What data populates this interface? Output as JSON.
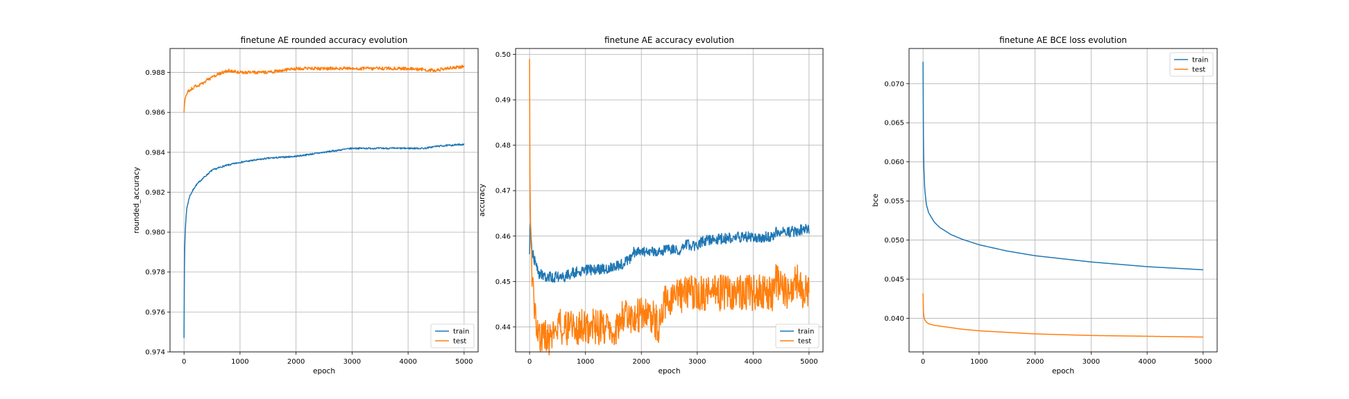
{
  "colors": {
    "train": "#1f77b4",
    "test": "#ff7f0e",
    "grid": "#b0b0b0"
  },
  "chart_data": [
    {
      "type": "line",
      "title": "finetune AE rounded accuracy evolution",
      "xlabel": "epoch",
      "ylabel": "rounded_accuracy",
      "xlim": [
        -250,
        5250
      ],
      "ylim": [
        0.974,
        0.9892
      ],
      "xticks": [
        0,
        1000,
        2000,
        3000,
        4000,
        5000
      ],
      "yticks": [
        0.974,
        0.976,
        0.978,
        0.98,
        0.982,
        0.984,
        0.986,
        0.988
      ],
      "tick_decimals": 3,
      "grid": true,
      "legend_position": "lower-right",
      "series": [
        {
          "name": "train",
          "color": "#1f77b4",
          "noise": 4e-05,
          "points": [
            [
              0,
              0.9747
            ],
            [
              3,
              0.977
            ],
            [
              10,
              0.979
            ],
            [
              25,
              0.9803
            ],
            [
              50,
              0.9812
            ],
            [
              100,
              0.9818
            ],
            [
              200,
              0.9823
            ],
            [
              300,
              0.9826
            ],
            [
              500,
              0.9831
            ],
            [
              700,
              0.9833
            ],
            [
              1000,
              0.9835
            ],
            [
              1500,
              0.9837
            ],
            [
              2000,
              0.9838
            ],
            [
              2500,
              0.984
            ],
            [
              3000,
              0.9842
            ],
            [
              3500,
              0.9842
            ],
            [
              4000,
              0.9842
            ],
            [
              4300,
              0.9842
            ],
            [
              4500,
              0.9843
            ],
            [
              5000,
              0.9844
            ]
          ]
        },
        {
          "name": "test",
          "color": "#ff7f0e",
          "noise": 8e-05,
          "points": [
            [
              0,
              0.986
            ],
            [
              10,
              0.9865
            ],
            [
              30,
              0.9868
            ],
            [
              60,
              0.987
            ],
            [
              100,
              0.9871
            ],
            [
              200,
              0.9873
            ],
            [
              300,
              0.9874
            ],
            [
              400,
              0.9876
            ],
            [
              600,
              0.9879
            ],
            [
              800,
              0.9881
            ],
            [
              1000,
              0.988
            ],
            [
              1500,
              0.988
            ],
            [
              2000,
              0.9882
            ],
            [
              2500,
              0.9882
            ],
            [
              3000,
              0.9882
            ],
            [
              3500,
              0.9882
            ],
            [
              4000,
              0.9882
            ],
            [
              4500,
              0.9881
            ],
            [
              4700,
              0.9882
            ],
            [
              5000,
              0.9883
            ]
          ]
        }
      ]
    },
    {
      "type": "line",
      "title": "finetune AE accuracy evolution",
      "xlabel": "epoch",
      "ylabel": "accuracy",
      "xlim": [
        -250,
        5250
      ],
      "ylim": [
        0.4345,
        0.5013
      ],
      "xticks": [
        0,
        1000,
        2000,
        3000,
        4000,
        5000
      ],
      "yticks": [
        0.44,
        0.45,
        0.46,
        0.47,
        0.48,
        0.49,
        0.5
      ],
      "tick_decimals": 2,
      "grid": true,
      "legend_position": "lower-right",
      "series": [
        {
          "name": "train",
          "color": "#1f77b4",
          "noise": 0.0012,
          "points": [
            [
              0,
              0.456
            ],
            [
              10,
              0.464
            ],
            [
              30,
              0.458
            ],
            [
              80,
              0.455
            ],
            [
              150,
              0.452
            ],
            [
              250,
              0.451
            ],
            [
              400,
              0.451
            ],
            [
              600,
              0.451
            ],
            [
              800,
              0.452
            ],
            [
              1000,
              0.4525
            ],
            [
              1500,
              0.453
            ],
            [
              1700,
              0.454
            ],
            [
              1800,
              0.455
            ],
            [
              1850,
              0.4565
            ],
            [
              2000,
              0.4565
            ],
            [
              2500,
              0.457
            ],
            [
              2700,
              0.457
            ],
            [
              2800,
              0.458
            ],
            [
              3000,
              0.458
            ],
            [
              3100,
              0.459
            ],
            [
              3500,
              0.4595
            ],
            [
              3700,
              0.4598
            ],
            [
              4000,
              0.4598
            ],
            [
              4350,
              0.4598
            ],
            [
              4400,
              0.461
            ],
            [
              4800,
              0.461
            ],
            [
              4850,
              0.4615
            ],
            [
              5000,
              0.4615
            ]
          ]
        },
        {
          "name": "test",
          "color": "#ff7f0e",
          "noise": 0.004,
          "points": [
            [
              0,
              0.499
            ],
            [
              5,
              0.475
            ],
            [
              15,
              0.465
            ],
            [
              30,
              0.455
            ],
            [
              60,
              0.447
            ],
            [
              100,
              0.442
            ],
            [
              150,
              0.44
            ],
            [
              200,
              0.4375
            ],
            [
              400,
              0.4375
            ],
            [
              500,
              0.44
            ],
            [
              700,
              0.44
            ],
            [
              1000,
              0.44
            ],
            [
              1600,
              0.44
            ],
            [
              1650,
              0.4425
            ],
            [
              2000,
              0.4425
            ],
            [
              2200,
              0.4425
            ],
            [
              2300,
              0.44
            ],
            [
              2400,
              0.445
            ],
            [
              2700,
              0.447
            ],
            [
              2800,
              0.4475
            ],
            [
              3000,
              0.4475
            ],
            [
              4000,
              0.4475
            ],
            [
              4350,
              0.4475
            ],
            [
              4400,
              0.45
            ],
            [
              4600,
              0.4475
            ],
            [
              4800,
              0.45
            ],
            [
              4900,
              0.4475
            ],
            [
              5000,
              0.4475
            ]
          ]
        }
      ]
    },
    {
      "type": "line",
      "title": "finetune AE BCE loss evolution",
      "xlabel": "epoch",
      "ylabel": "bce",
      "xlim": [
        -250,
        5250
      ],
      "ylim": [
        0.0357,
        0.0745
      ],
      "xticks": [
        0,
        1000,
        2000,
        3000,
        4000,
        5000
      ],
      "yticks": [
        0.04,
        0.045,
        0.05,
        0.055,
        0.06,
        0.065,
        0.07
      ],
      "tick_decimals": 3,
      "grid": true,
      "legend_position": "upper-right",
      "series": [
        {
          "name": "train",
          "color": "#1f77b4",
          "noise": 0,
          "points": [
            [
              0,
              0.0728
            ],
            [
              5,
              0.064
            ],
            [
              15,
              0.059
            ],
            [
              30,
              0.0565
            ],
            [
              60,
              0.0545
            ],
            [
              100,
              0.0535
            ],
            [
              200,
              0.0523
            ],
            [
              300,
              0.0516
            ],
            [
              500,
              0.0507
            ],
            [
              700,
              0.0501
            ],
            [
              1000,
              0.0494
            ],
            [
              1500,
              0.0486
            ],
            [
              2000,
              0.048
            ],
            [
              2500,
              0.0476
            ],
            [
              3000,
              0.0472
            ],
            [
              3500,
              0.0469
            ],
            [
              4000,
              0.0466
            ],
            [
              4500,
              0.0464
            ],
            [
              5000,
              0.0462
            ]
          ]
        },
        {
          "name": "test",
          "color": "#ff7f0e",
          "noise": 0,
          "points": [
            [
              0,
              0.0432
            ],
            [
              5,
              0.041
            ],
            [
              15,
              0.0402
            ],
            [
              30,
              0.0398
            ],
            [
              60,
              0.0395
            ],
            [
              100,
              0.0393
            ],
            [
              200,
              0.0391
            ],
            [
              400,
              0.0389
            ],
            [
              700,
              0.0386
            ],
            [
              1000,
              0.0384
            ],
            [
              1500,
              0.0382
            ],
            [
              2000,
              0.038
            ],
            [
              3000,
              0.0378
            ],
            [
              4000,
              0.0377
            ],
            [
              5000,
              0.0376
            ]
          ]
        }
      ]
    }
  ]
}
